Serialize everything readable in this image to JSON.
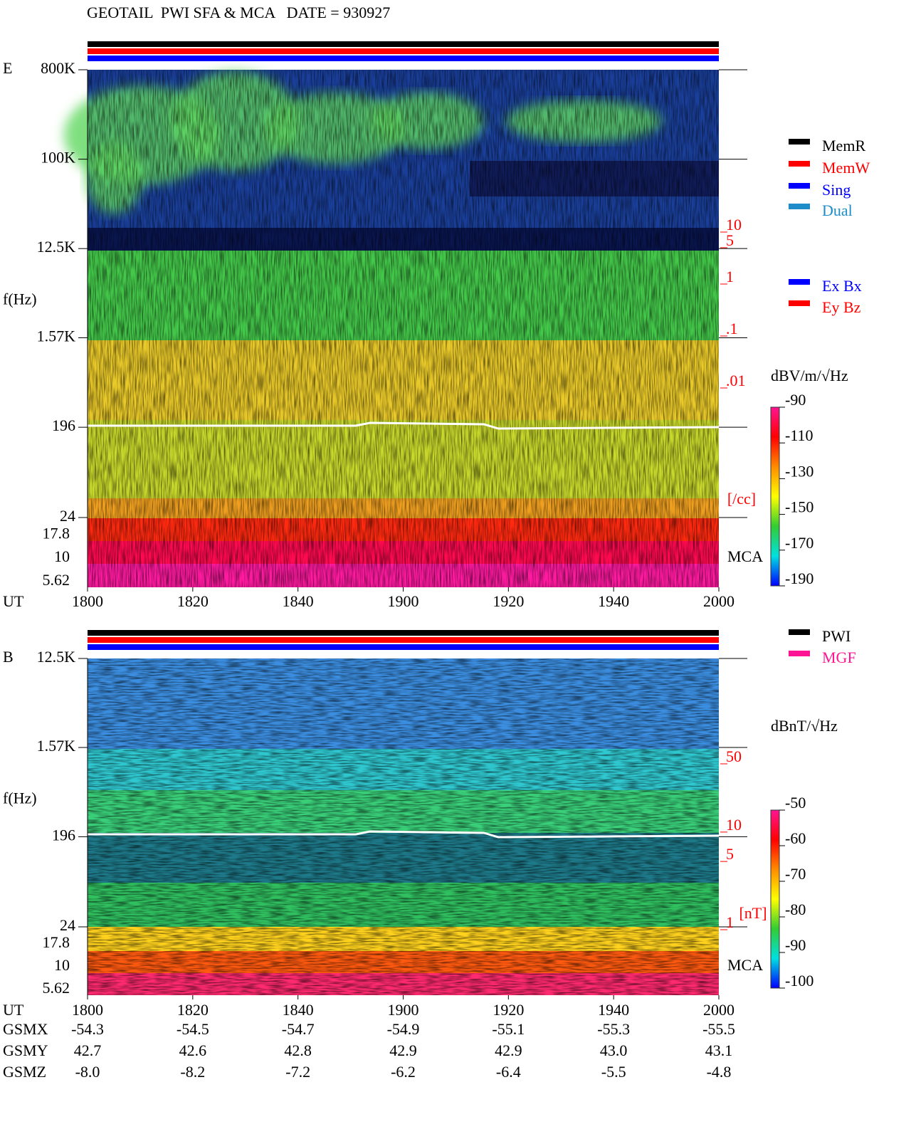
{
  "chart_data": [
    {
      "type": "spectrogram",
      "title": "GEOTAIL  PWI SFA & MCA   DATE = 930927",
      "panel_label": "E",
      "y_label": "f(Hz)",
      "yscale": "log",
      "ylim": [
        24,
        800000
      ],
      "yticks": [
        {
          "value": 800000,
          "label": "800K"
        },
        {
          "value": 100000,
          "label": "100K"
        },
        {
          "value": 12500,
          "label": "12.5K"
        },
        {
          "value": 1570,
          "label": "1.57K"
        },
        196,
        24
      ],
      "mca_label": "MCA",
      "mca_channels": [
        17.8,
        10,
        5.62
      ],
      "x_label": "UT",
      "xticks": [
        "1800",
        "1820",
        "1840",
        "1900",
        "1920",
        "1940",
        "2000"
      ],
      "status_bars": [
        "#000000",
        "#ff0000",
        "#0000ff"
      ],
      "colorbar": {
        "label": "dBV/m/√Hz",
        "lim": [
          -190,
          -90
        ],
        "ticks": [
          -90,
          -110,
          -130,
          -150,
          -170,
          -190
        ],
        "colormap": [
          "#ff1493",
          "#ff0000",
          "#ff8c00",
          "#ffff00",
          "#33cc33",
          "#00e0e0",
          "#0000ff"
        ]
      },
      "y2scale": "log",
      "y2lim": [
        0.01,
        10
      ],
      "y2ticks": [
        10,
        5,
        1,
        {
          "value": 0.1,
          "label": ".1"
        },
        {
          "value": 0.01,
          "label": ".01"
        }
      ],
      "y2_label": "[/cc]",
      "y2_color": "#ff0000",
      "legends": [
        [
          {
            "name": "MemR",
            "color": "#000000"
          },
          {
            "name": "MemW",
            "color": "#ff0000"
          },
          {
            "name": "Sing",
            "color": "#0000ff"
          },
          {
            "name": "Dual",
            "color": "#1e8cc8"
          }
        ],
        [
          {
            "name": "Ex Bx",
            "color": "#0000ff"
          },
          {
            "name": "Ey Bz",
            "color": "#ff0000"
          }
        ]
      ]
    },
    {
      "type": "spectrogram",
      "panel_label": "B",
      "y_label": "f(Hz)",
      "yscale": "log",
      "ylim": [
        24,
        12500
      ],
      "yticks": [
        {
          "value": 12500,
          "label": "12.5K"
        },
        {
          "value": 1570,
          "label": "1.57K"
        },
        196,
        24
      ],
      "mca_label": "MCA",
      "mca_channels": [
        17.8,
        10,
        5.62
      ],
      "x_label": "UT",
      "xticks": [
        "1800",
        "1820",
        "1840",
        "1900",
        "1920",
        "1940",
        "2000"
      ],
      "status_bars": [
        "#000000",
        "#ff0000",
        "#0000ff"
      ],
      "colorbar": {
        "label": "dBnT/√Hz",
        "lim": [
          -100,
          -50
        ],
        "ticks": [
          -50,
          -60,
          -70,
          -80,
          -90,
          -100
        ],
        "colormap": [
          "#ff1493",
          "#ff0000",
          "#ff8c00",
          "#ffff00",
          "#33cc33",
          "#00e0e0",
          "#0000ff"
        ]
      },
      "y2scale": "log",
      "y2lim": [
        1,
        50
      ],
      "y2ticks": [
        50,
        10,
        5,
        1
      ],
      "y2_label": "[nT]",
      "y2_color": "#ff0000",
      "legends": [
        [
          {
            "name": "PWI",
            "color": "#000000"
          },
          {
            "name": "MGF",
            "color": "#ff1493"
          }
        ]
      ]
    }
  ],
  "orbit": {
    "rows": [
      {
        "name": "GSMX",
        "values": [
          -54.3,
          -54.5,
          -54.7,
          -54.9,
          -55.1,
          -55.3,
          -55.5
        ]
      },
      {
        "name": "GSMY",
        "values": [
          42.7,
          42.6,
          42.8,
          42.9,
          42.9,
          {
            "value": 43,
            "label": "43.0"
          },
          43.1
        ]
      },
      {
        "name": "GSMZ",
        "values": [
          {
            "value": -8,
            "label": "-8.0"
          },
          -8.2,
          -7.2,
          -6.2,
          -6.4,
          -5.5,
          -4.8
        ]
      }
    ]
  }
}
